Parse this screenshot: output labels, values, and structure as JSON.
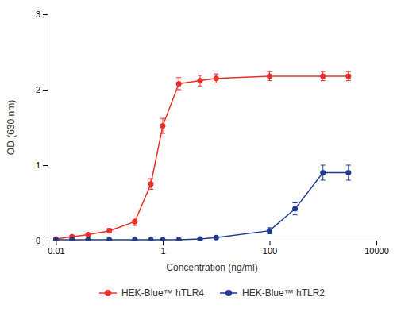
{
  "chart_data": {
    "type": "line",
    "xlabel": "Concentration (ng/ml)",
    "ylabel": "OD (630 nm)",
    "log": "x",
    "xlim": [
      0.007,
      10000
    ],
    "xticks": [
      0.01,
      1,
      100,
      10000
    ],
    "ylim": [
      0,
      3.0
    ],
    "yticks": [
      0,
      1,
      2,
      3
    ],
    "grid": false,
    "legend": "bottom",
    "marker": "circle",
    "series": [
      {
        "name": "HEK-Blue™ hTLR4",
        "color": "#e8302a",
        "x": [
          0.01,
          0.02,
          0.04,
          0.1,
          0.3,
          0.6,
          1.0,
          2.0,
          5.0,
          10.0,
          100.0,
          1000.0,
          3000.0
        ],
        "values": [
          0.02,
          0.05,
          0.08,
          0.13,
          0.25,
          0.75,
          1.52,
          2.08,
          2.12,
          2.15,
          2.18,
          2.18,
          2.18
        ],
        "errors": [
          0.01,
          0.02,
          0.02,
          0.03,
          0.05,
          0.07,
          0.1,
          0.08,
          0.07,
          0.06,
          0.06,
          0.06,
          0.06
        ]
      },
      {
        "name": "HEK-Blue™ hTLR2",
        "color": "#1f3a8f",
        "x": [
          0.01,
          0.02,
          0.04,
          0.1,
          0.3,
          0.6,
          1.0,
          2.0,
          5.0,
          10.0,
          100.0,
          300.0,
          1000.0,
          3000.0
        ],
        "values": [
          0.01,
          0.01,
          0.01,
          0.01,
          0.01,
          0.01,
          0.01,
          0.01,
          0.02,
          0.04,
          0.13,
          0.42,
          0.9,
          0.9
        ],
        "errors": [
          0.005,
          0.005,
          0.005,
          0.005,
          0.005,
          0.005,
          0.005,
          0.005,
          0.01,
          0.02,
          0.04,
          0.08,
          0.1,
          0.1
        ]
      }
    ]
  }
}
